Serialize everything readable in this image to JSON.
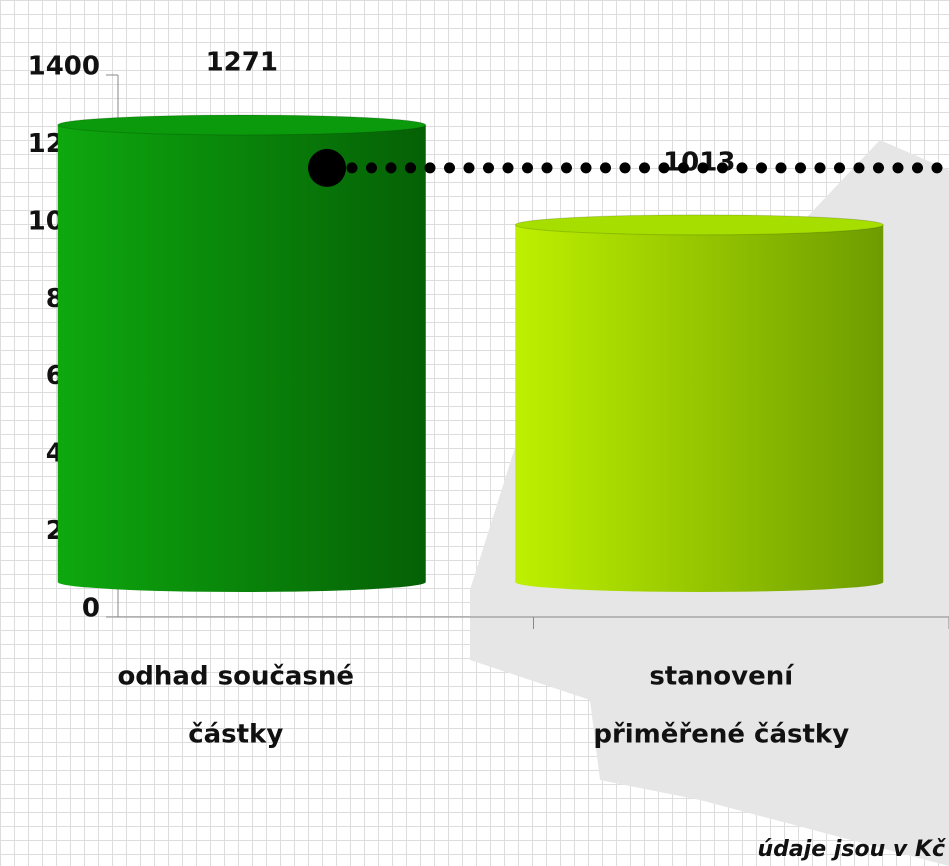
{
  "chart_data": {
    "type": "cylinder",
    "categories": [
      [
        "odhad současné",
        "částky"
      ],
      [
        "stanovení",
        "přiměřené částky"
      ]
    ],
    "values": [
      1271,
      1013
    ],
    "colors": [
      "#0b9a0b",
      "#a6de00"
    ],
    "reference": 1160,
    "ylim": [
      0,
      1400
    ],
    "yticks": [
      0,
      200,
      400,
      600,
      800,
      1000,
      1200,
      1400
    ],
    "note": "údaje jsou v Kč"
  }
}
